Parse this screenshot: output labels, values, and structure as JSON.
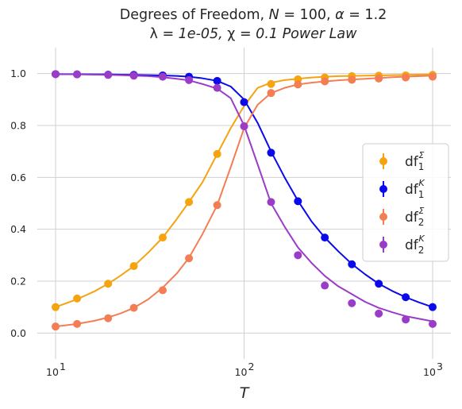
{
  "chart_data": {
    "type": "line",
    "title_line1": "Degrees of Freedom, N = 100, α = 1.2",
    "title_line2": "λ = 1e-05, χ = 0.1 Power Law",
    "title_parts1": [
      "Degrees of Freedom, ",
      "N",
      " = 100, ",
      "α",
      " = 1.2"
    ],
    "title_parts2": [
      "λ",
      " = 1e-05, ",
      "χ",
      " = 0.1 Power Law"
    ],
    "xlabel": "T",
    "ylabel": "",
    "x_scale": "log",
    "xlim": [
      8.0,
      1250
    ],
    "ylim": [
      -0.1,
      1.1
    ],
    "x_ticks": [
      {
        "base": "10",
        "exp": "1"
      },
      {
        "base": "10",
        "exp": "2"
      },
      {
        "base": "10",
        "exp": "3"
      }
    ],
    "y_ticks": [
      "0.0",
      "0.2",
      "0.4",
      "0.6",
      "0.8",
      "1.0"
    ],
    "grid": true,
    "legend_position": "center-right",
    "points_x": [
      10,
      13,
      19,
      26,
      37,
      51,
      72,
      100,
      139,
      193,
      268,
      373,
      518,
      720,
      1000
    ],
    "curve_x": [
      10,
      13,
      16,
      19,
      22,
      26,
      31,
      37,
      44,
      51,
      60,
      72,
      85,
      100,
      118,
      139,
      164,
      193,
      228,
      268,
      316,
      373,
      439,
      518,
      611,
      720,
      848,
      1000
    ],
    "series": [
      {
        "label_base": "df",
        "label_sub": "1",
        "label_sup": "Σ",
        "color": "#f5a30f",
        "points_y": [
          0.1,
          0.133,
          0.19,
          0.258,
          0.368,
          0.505,
          0.69,
          0.89,
          0.96,
          0.978,
          0.985,
          0.99,
          0.992,
          0.993,
          0.995
        ],
        "curve_y": [
          0.1,
          0.13,
          0.16,
          0.19,
          0.22,
          0.258,
          0.31,
          0.368,
          0.44,
          0.505,
          0.58,
          0.69,
          0.79,
          0.875,
          0.945,
          0.965,
          0.975,
          0.98,
          0.985,
          0.988,
          0.99,
          0.991,
          0.992,
          0.993,
          0.994,
          0.995,
          0.996,
          0.997
        ]
      },
      {
        "label_base": "df",
        "label_sub": "1",
        "label_sup": "K",
        "color": "#0a0aea",
        "points_y": [
          0.998,
          0.997,
          0.996,
          0.995,
          0.993,
          0.988,
          0.972,
          0.89,
          0.695,
          0.508,
          0.368,
          0.265,
          0.19,
          0.138,
          0.1
        ],
        "curve_y": [
          0.998,
          0.998,
          0.997,
          0.997,
          0.996,
          0.995,
          0.994,
          0.993,
          0.991,
          0.988,
          0.982,
          0.972,
          0.95,
          0.9,
          0.81,
          0.7,
          0.6,
          0.51,
          0.43,
          0.368,
          0.315,
          0.266,
          0.226,
          0.19,
          0.162,
          0.138,
          0.118,
          0.1
        ]
      },
      {
        "label_base": "df",
        "label_sub": "2",
        "label_sup": "Σ",
        "color": "#f47e53",
        "points_y": [
          0.025,
          0.035,
          0.057,
          0.097,
          0.165,
          0.288,
          0.493,
          0.797,
          0.925,
          0.958,
          0.97,
          0.976,
          0.981,
          0.985,
          0.988
        ],
        "curve_y": [
          0.025,
          0.035,
          0.047,
          0.06,
          0.075,
          0.097,
          0.13,
          0.175,
          0.23,
          0.29,
          0.38,
          0.493,
          0.64,
          0.79,
          0.88,
          0.925,
          0.945,
          0.958,
          0.965,
          0.97,
          0.974,
          0.977,
          0.98,
          0.983,
          0.986,
          0.988,
          0.99,
          0.992
        ]
      },
      {
        "label_base": "df",
        "label_sub": "2",
        "label_sup": "K",
        "color": "#9b3cc9",
        "points_y": [
          0.998,
          0.997,
          0.995,
          0.992,
          0.988,
          0.975,
          0.945,
          0.797,
          0.505,
          0.3,
          0.183,
          0.115,
          0.075,
          0.052,
          0.035
        ],
        "curve_y": [
          0.998,
          0.997,
          0.996,
          0.995,
          0.994,
          0.992,
          0.99,
          0.986,
          0.98,
          0.974,
          0.96,
          0.942,
          0.905,
          0.8,
          0.65,
          0.5,
          0.41,
          0.33,
          0.27,
          0.22,
          0.18,
          0.15,
          0.12,
          0.097,
          0.08,
          0.065,
          0.055,
          0.045
        ]
      }
    ]
  }
}
